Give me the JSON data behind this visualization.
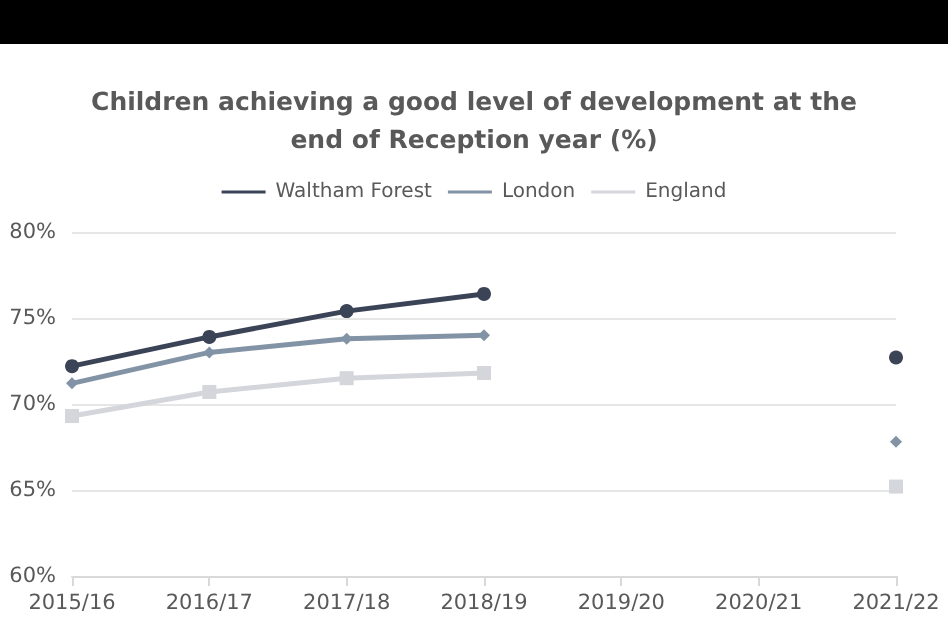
{
  "chart_data": {
    "type": "line",
    "title": "Children achieving a good level of development at the\nend of Reception year (%)",
    "categories": [
      "2015/16",
      "2016/17",
      "2017/18",
      "2018/19",
      "2019/20",
      "2020/21",
      "2021/22"
    ],
    "series": [
      {
        "name": "Waltham Forest",
        "color": "#3b4356",
        "marker": "circle",
        "values": [
          72.2,
          73.9,
          75.4,
          76.4,
          null,
          null,
          72.7
        ]
      },
      {
        "name": "London",
        "color": "#8293a6",
        "marker": "diamond",
        "values": [
          71.2,
          73.0,
          73.8,
          74.0,
          null,
          null,
          67.8
        ]
      },
      {
        "name": "England",
        "color": "#d4d6dc",
        "marker": "square",
        "values": [
          69.3,
          70.7,
          71.5,
          71.8,
          null,
          null,
          65.2
        ]
      }
    ],
    "ylim": [
      60,
      80
    ],
    "yticks": [
      {
        "value": 60,
        "label": "60%"
      },
      {
        "value": 65,
        "label": "65%"
      },
      {
        "value": 70,
        "label": "70%"
      },
      {
        "value": 75,
        "label": "75%"
      },
      {
        "value": 80,
        "label": "80%"
      }
    ],
    "grid": "y",
    "legend": "top"
  }
}
